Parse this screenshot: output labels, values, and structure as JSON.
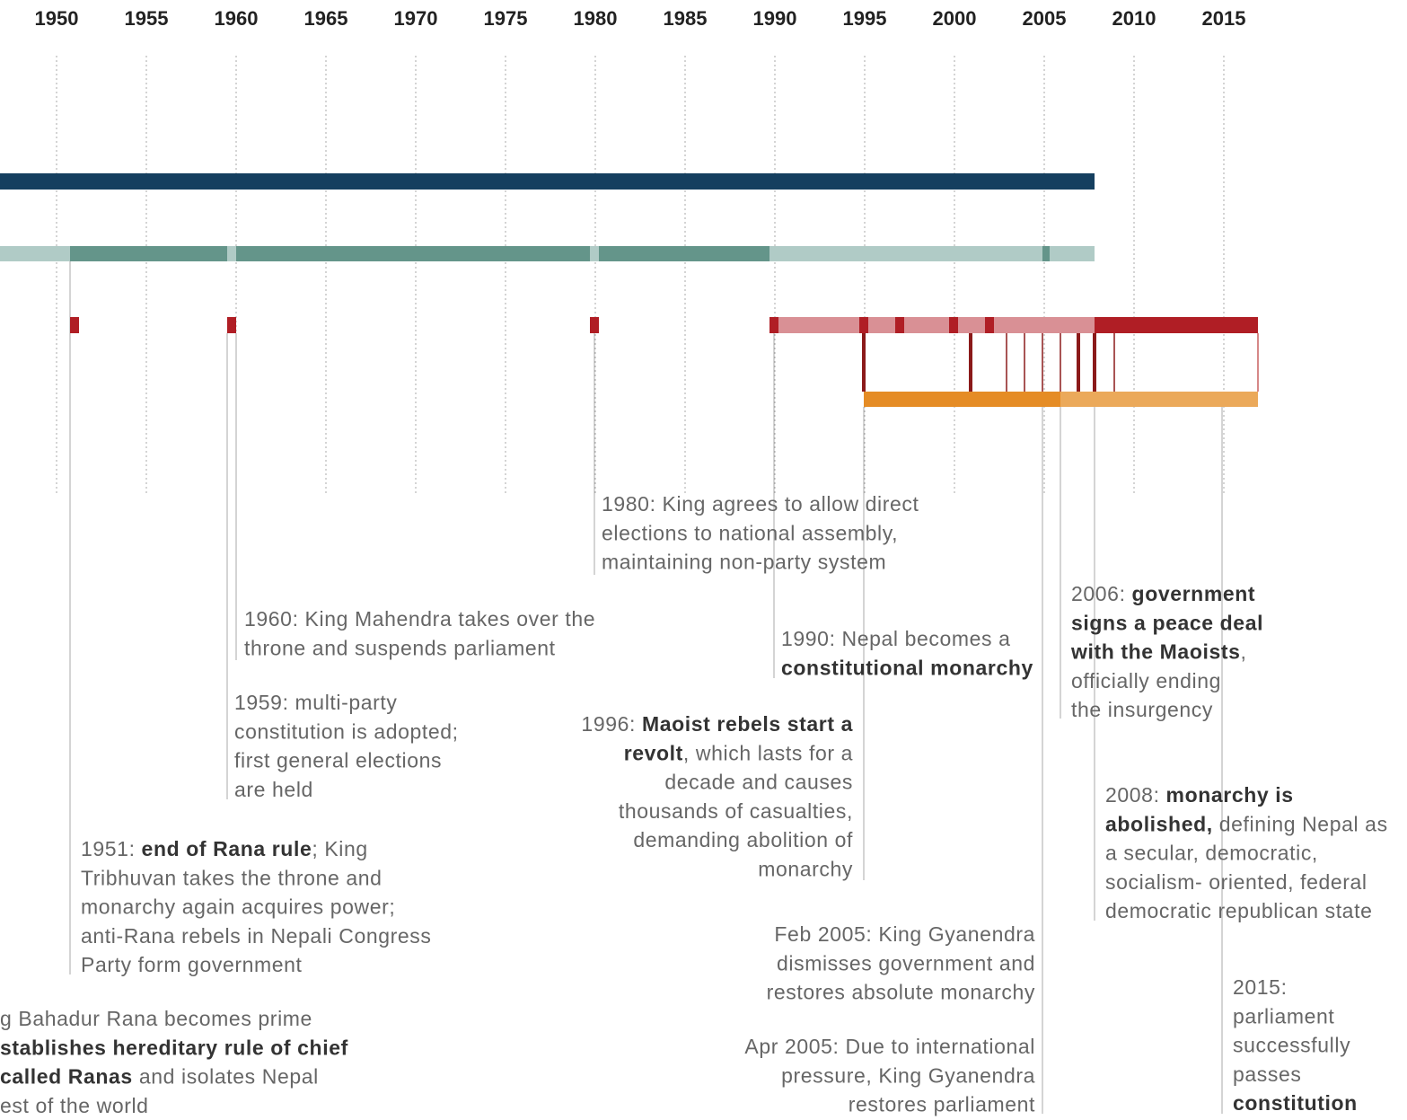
{
  "axis": {
    "years": [
      "1950",
      "1955",
      "1960",
      "1965",
      "1970",
      "1975",
      "1980",
      "1985",
      "1990",
      "1995",
      "2000",
      "2005",
      "2010",
      "2015"
    ]
  },
  "annotations": [
    {
      "lines": [
        [
          "1980: King agrees to allow direct"
        ],
        [
          "elections to national assembly,"
        ],
        [
          "maintaining non-party system"
        ]
      ]
    },
    {
      "lines": [
        [
          "1960: King Mahendra takes over the"
        ],
        [
          "throne and suspends parliament"
        ]
      ]
    },
    {
      "lines": [
        [
          "1959: multi-party"
        ],
        [
          "constitution is adopted;"
        ],
        [
          "first general elections"
        ],
        [
          "are held"
        ]
      ]
    },
    {
      "lines": [
        [
          "1951: ",
          {
            "bold": "end of Rana rule"
          },
          "; King"
        ],
        [
          "Tribhuvan takes the throne and"
        ],
        [
          "monarchy again acquires power;"
        ],
        [
          "anti-Rana rebels in Nepali Congress"
        ],
        [
          "Party form government"
        ]
      ]
    },
    {
      "lines": [
        [
          "g Bahadur Rana becomes prime"
        ],
        [
          {
            "bold": "stablishes hereditary rule of chief"
          }
        ],
        [
          {
            "bold": "called Ranas"
          },
          " and isolates Nepal"
        ],
        [
          "est of the world"
        ]
      ]
    },
    {
      "lines": [
        [
          "1990: Nepal becomes a"
        ],
        [
          {
            "bold": "constitutional monarchy"
          }
        ]
      ]
    },
    {
      "lines": [
        [
          "1996: ",
          {
            "bold": "Maoist rebels start a"
          }
        ],
        [
          {
            "bold": "revolt"
          },
          ", which lasts for a"
        ],
        [
          "decade and causes"
        ],
        [
          "thousands of casualties,"
        ],
        [
          "demanding abolition of"
        ],
        [
          "monarchy"
        ]
      ]
    },
    {
      "lines": [
        [
          "Feb 2005: King Gyanendra"
        ],
        [
          "dismisses government and"
        ],
        [
          "restores absolute monarchy"
        ]
      ]
    },
    {
      "lines": [
        [
          "Apr 2005: Due to international"
        ],
        [
          "pressure, King Gyanendra"
        ],
        [
          "restores parliament"
        ]
      ]
    },
    {
      "lines": [
        [
          "2006: ",
          {
            "bold": "government"
          }
        ],
        [
          {
            "bold": "signs a peace deal"
          }
        ],
        [
          {
            "bold": "with the Maoists"
          },
          ","
        ],
        [
          "officially ending"
        ],
        [
          "the insurgency"
        ]
      ]
    },
    {
      "lines": [
        [
          "2008: ",
          {
            "bold": "monarchy is"
          }
        ],
        [
          {
            "bold": "abolished,"
          },
          " defining Nepal as"
        ],
        [
          "a secular, democratic,"
        ],
        [
          "socialism- oriented, federal"
        ],
        [
          "democratic republican state"
        ]
      ]
    },
    {
      "lines": [
        [
          "2015:"
        ],
        [
          "parliament"
        ],
        [
          "successfully"
        ],
        [
          "passes"
        ],
        [
          {
            "bold": "constitution"
          }
        ]
      ]
    }
  ]
}
